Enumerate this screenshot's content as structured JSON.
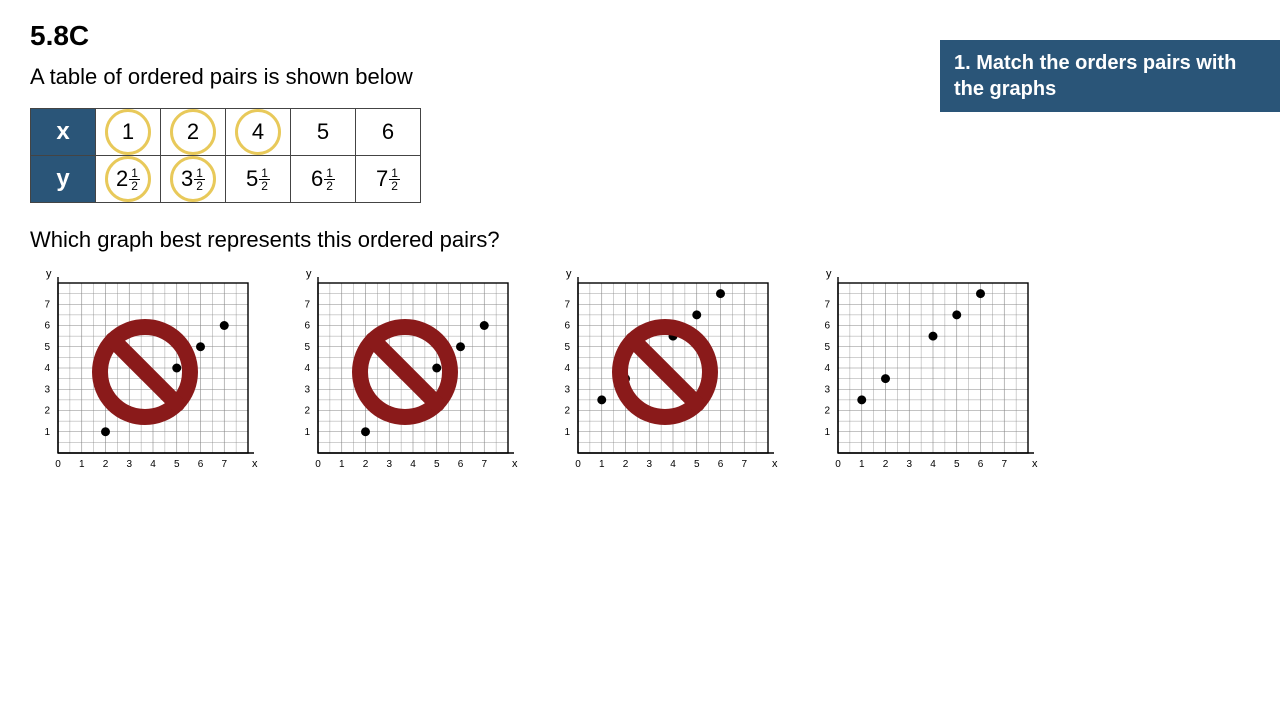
{
  "heading": "5.8C",
  "intro": "A table of ordered pairs is shown below",
  "banner": "1. Match the orders pairs with the graphs",
  "question": "Which graph best represents this ordered pairs?",
  "table": {
    "header_x": "x",
    "header_y": "y",
    "x_values": [
      "1",
      "2",
      "4",
      "5",
      "6"
    ],
    "y_values": [
      {
        "whole": "2",
        "num": "1",
        "den": "2"
      },
      {
        "whole": "3",
        "num": "1",
        "den": "2"
      },
      {
        "whole": "5",
        "num": "1",
        "den": "2"
      },
      {
        "whole": "6",
        "num": "1",
        "den": "2"
      },
      {
        "whole": "7",
        "num": "1",
        "den": "2"
      }
    ],
    "circle_color": "#e8c95a",
    "circled_cells": [
      [
        0,
        0
      ],
      [
        0,
        1
      ],
      [
        0,
        2
      ],
      [
        1,
        0
      ],
      [
        1,
        1
      ]
    ]
  },
  "graphs": {
    "axis_max": 8,
    "tick_labels": [
      "0",
      "1",
      "2",
      "3",
      "4",
      "5",
      "6",
      "7"
    ],
    "x_label": "x",
    "y_label": "y",
    "grid_color": "#888888",
    "point_color": "#000000",
    "point_radius": 4.5,
    "no_sign_color": "#8a1a1a",
    "charts": [
      {
        "rejected": true,
        "pts": [
          [
            2,
            1
          ],
          [
            3,
            2
          ],
          [
            5,
            4
          ],
          [
            6,
            5
          ],
          [
            7,
            6
          ]
        ]
      },
      {
        "rejected": true,
        "pts": [
          [
            2,
            1
          ],
          [
            3,
            2
          ],
          [
            5,
            4
          ],
          [
            6,
            5
          ],
          [
            7,
            6
          ]
        ]
      },
      {
        "rejected": true,
        "pts": [
          [
            1,
            2.5
          ],
          [
            2,
            3.5
          ],
          [
            4,
            5.5
          ],
          [
            5,
            6.5
          ],
          [
            6,
            7.5
          ]
        ]
      },
      {
        "rejected": false,
        "pts": [
          [
            1,
            2.5
          ],
          [
            2,
            3.5
          ],
          [
            4,
            5.5
          ],
          [
            5,
            6.5
          ],
          [
            6,
            7.5
          ]
        ]
      }
    ]
  }
}
